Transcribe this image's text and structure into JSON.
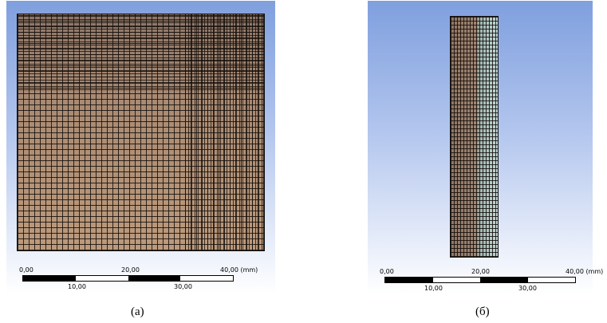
{
  "panel_a": {
    "scale": {
      "top_labels": [
        "0,00",
        "20,00",
        "40,00 (mm)"
      ],
      "bottom_labels": [
        "10,00",
        "30,00"
      ]
    },
    "caption": "(a)"
  },
  "panel_b": {
    "scale": {
      "top_labels": [
        "0,00",
        "20,00",
        "40,00 (mm)"
      ],
      "bottom_labels": [
        "10,00",
        "30,00"
      ]
    },
    "caption": "(б)"
  },
  "colors": {
    "mesh_body": "#a88a72",
    "mesh_highlight": "#c3d8d6",
    "viewport_top": "#7f9fde"
  }
}
